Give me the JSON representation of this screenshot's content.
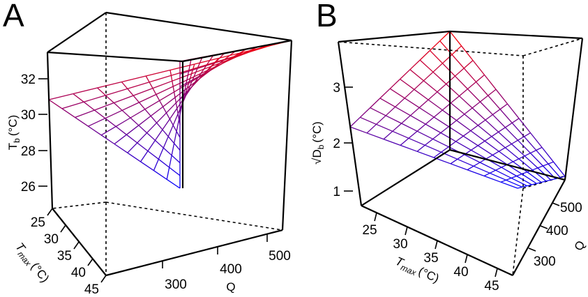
{
  "panels": [
    {
      "letter": "A"
    },
    {
      "letter": "B"
    }
  ],
  "chart_data": [
    {
      "type": "surface",
      "panel": "A",
      "z_axis": {
        "label_main": "T",
        "label_sub": "b",
        "label_unit": "(°C)",
        "ticks": [
          "26",
          "28",
          "30",
          "32"
        ]
      },
      "tmax_axis": {
        "label_main": "T",
        "label_sub": "max",
        "label_unit": "(°C)",
        "ticks": [
          "25",
          "30",
          "35",
          "40",
          "45"
        ]
      },
      "q_axis": {
        "label": "Q",
        "ticks": [
          "300",
          "400",
          "500"
        ]
      },
      "corners": {
        "tmax_high_q_low": 25.9,
        "tmax_low_q_low": 30.8,
        "tmax_low_q_high": 33.4,
        "tmax_high_q_high": 31.0
      },
      "colors": {
        "high": "#ff0000",
        "low": "#0000ff"
      }
    },
    {
      "type": "surface",
      "panel": "B",
      "z_axis": {
        "label_main": "√D",
        "label_sub": "b",
        "label_unit": "(°C)",
        "ticks": [
          "1",
          "2",
          "3"
        ]
      },
      "tmax_axis": {
        "label_main": "T",
        "label_sub": "max",
        "label_unit": "(°C)",
        "ticks": [
          "25",
          "30",
          "35",
          "40",
          "45"
        ]
      },
      "q_axis": {
        "label": "Q",
        "ticks": [
          "300",
          "400",
          "500"
        ]
      },
      "corners": {
        "tmax_low_q_high": 3.7,
        "tmax_low_q_low": 2.3,
        "tmax_high_q_low": 1.3,
        "tmax_high_q_high": 1.5
      },
      "colors": {
        "high": "#ff0000",
        "low": "#0000ff"
      }
    }
  ]
}
